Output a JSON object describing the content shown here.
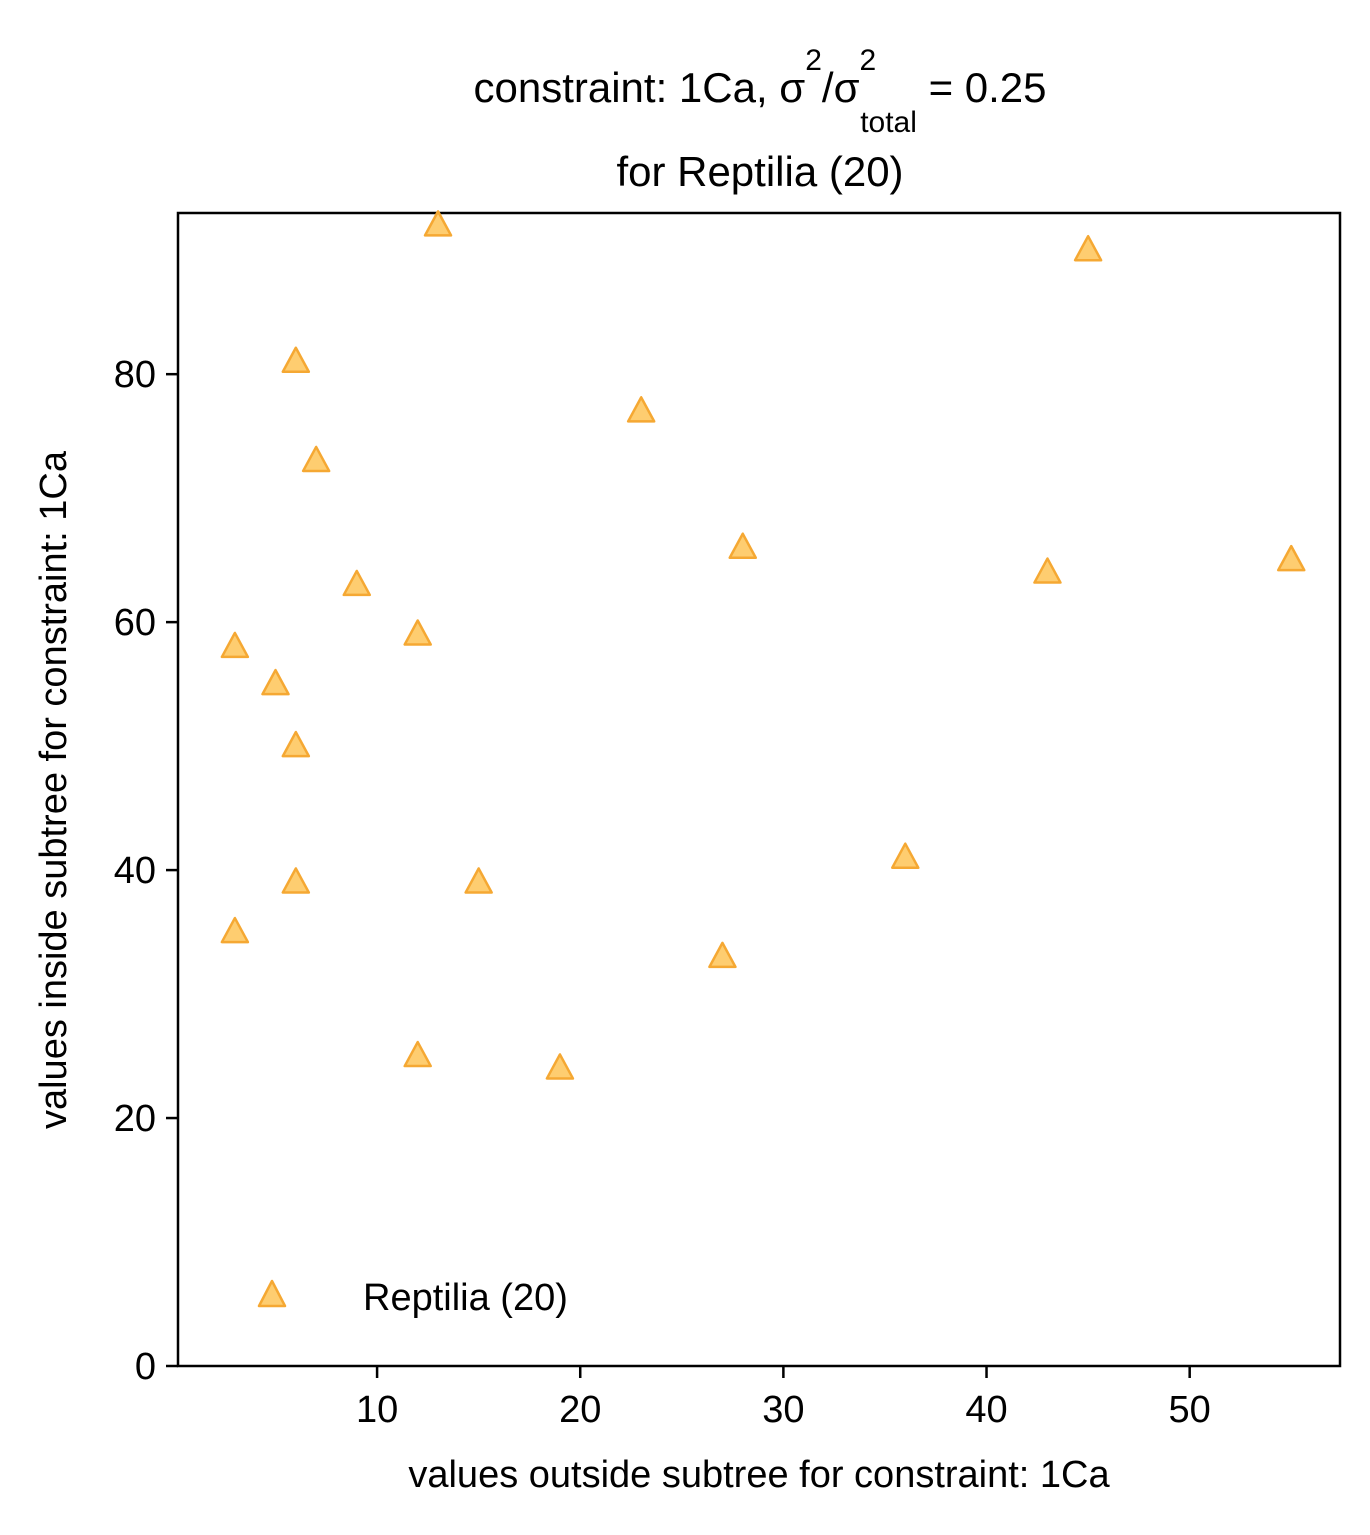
{
  "chart_data": {
    "type": "scatter",
    "title_line1_prefix": "constraint: 1Ca, σ",
    "title_sup1": "2",
    "title_slash": "/σ",
    "title_sup2": "2",
    "title_sub": "total",
    "title_line1_suffix": " =  0.25",
    "title_line2": "for Reptilia (20)",
    "xlabel": "values outside subtree for constraint: 1Ca",
    "ylabel": "values inside subtree for constraint: 1Ca",
    "xlim": [
      0.2,
      57.4
    ],
    "ylim": [
      0,
      93
    ],
    "xticks": [
      10,
      20,
      30,
      40,
      50
    ],
    "yticks": [
      0,
      20,
      40,
      60,
      80
    ],
    "grid": false,
    "legend_position": "lower-left",
    "series": [
      {
        "name": "Reptilia (20)",
        "marker": "triangle",
        "color": "#FDB833",
        "edge_color": "#F5A833",
        "points": [
          {
            "x": 13,
            "y": 92
          },
          {
            "x": 45,
            "y": 90
          },
          {
            "x": 6,
            "y": 81
          },
          {
            "x": 23,
            "y": 77
          },
          {
            "x": 7,
            "y": 73
          },
          {
            "x": 28,
            "y": 66
          },
          {
            "x": 55,
            "y": 65
          },
          {
            "x": 43,
            "y": 64
          },
          {
            "x": 9,
            "y": 63
          },
          {
            "x": 12,
            "y": 59
          },
          {
            "x": 3,
            "y": 58
          },
          {
            "x": 5,
            "y": 55
          },
          {
            "x": 6,
            "y": 50
          },
          {
            "x": 36,
            "y": 41
          },
          {
            "x": 6,
            "y": 39
          },
          {
            "x": 15,
            "y": 39
          },
          {
            "x": 3,
            "y": 35
          },
          {
            "x": 27,
            "y": 33
          },
          {
            "x": 12,
            "y": 25
          },
          {
            "x": 19,
            "y": 24
          }
        ]
      }
    ]
  }
}
